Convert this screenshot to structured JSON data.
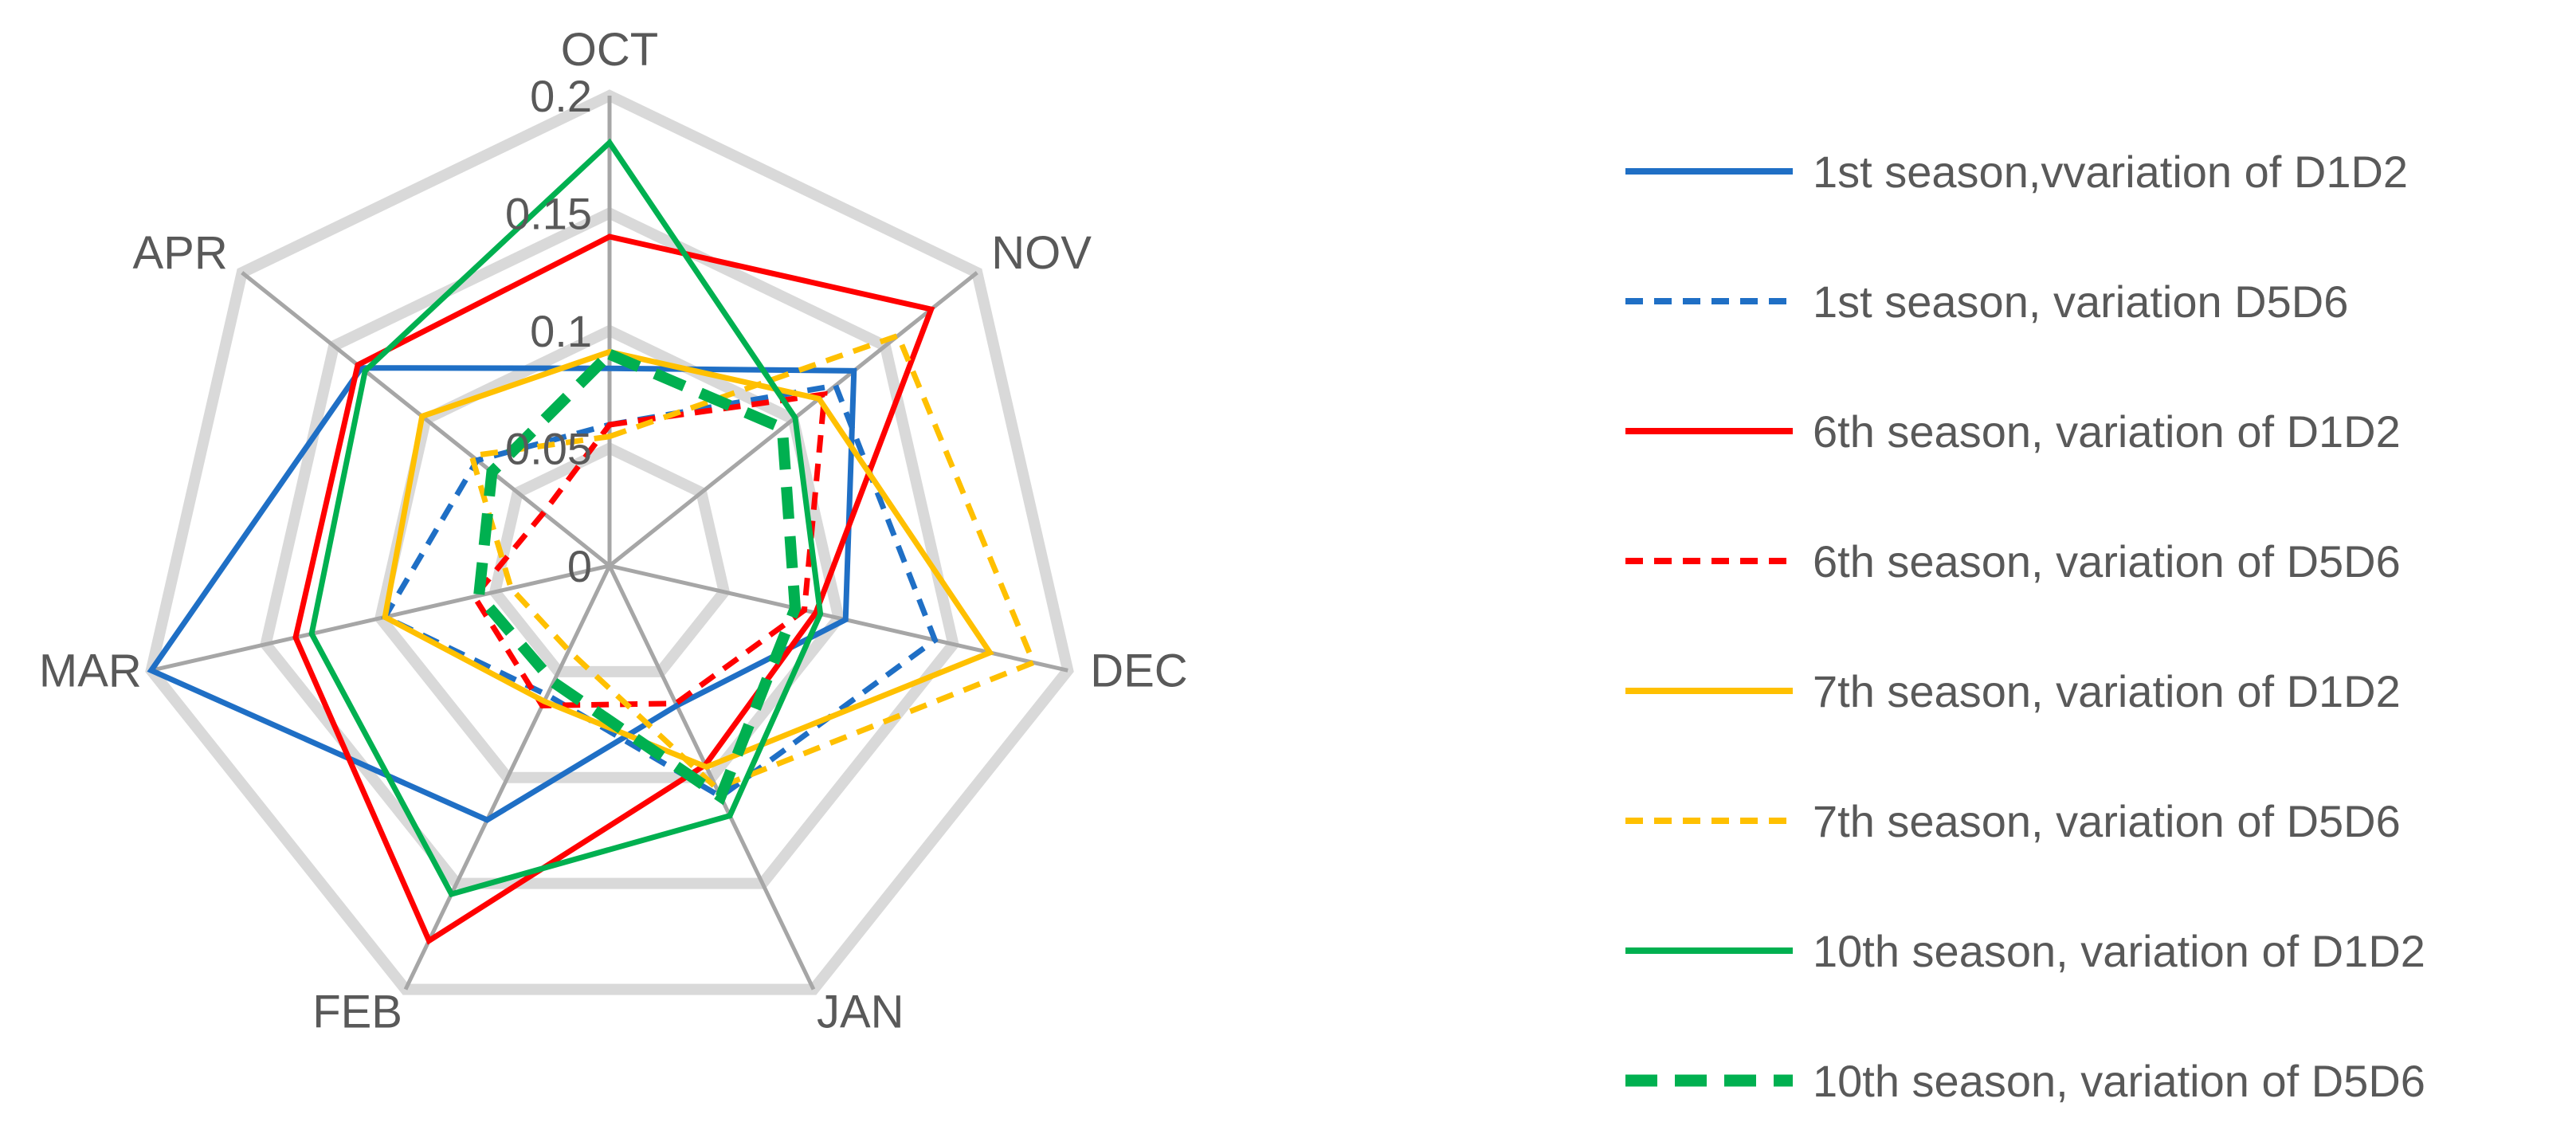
{
  "chart_data": {
    "type": "radar",
    "title": "",
    "axes": [
      "OCT",
      "NOV",
      "DEC",
      "JAN",
      "FEB",
      "MAR",
      "APR"
    ],
    "rlim": [
      0,
      0.2
    ],
    "ticks": [
      "0",
      "0.05",
      "0.1",
      "0.15",
      "0.2"
    ],
    "tick_values": [
      0,
      0.05,
      0.1,
      0.15,
      0.2
    ],
    "grid": true,
    "legend_position": "right",
    "series": [
      {
        "name": "1st season,vvariation of D1D2",
        "color": "#1f6fc5",
        "dash": "solid",
        "values": [
          0.084,
          0.133,
          0.103,
          0.066,
          0.12,
          0.2,
          0.135
        ]
      },
      {
        "name": "1st season, variation D5D6",
        "color": "#1f6fc5",
        "dash": "dashed",
        "values": [
          0.06,
          0.123,
          0.142,
          0.109,
          0.061,
          0.098,
          0.072
        ]
      },
      {
        "name": "6th season, variation of D1D2",
        "color": "#ff0000",
        "dash": "solid",
        "values": [
          0.14,
          0.175,
          0.09,
          0.094,
          0.177,
          0.137,
          0.137
        ]
      },
      {
        "name": "6th season, variation of D5D6",
        "color": "#ff0000",
        "dash": "dashed",
        "values": [
          0.06,
          0.117,
          0.085,
          0.065,
          0.066,
          0.059,
          0.036
        ]
      },
      {
        "name": "7th season, variation of D1D2",
        "color": "#ffc000",
        "dash": "solid",
        "values": [
          0.091,
          0.114,
          0.166,
          0.095,
          0.064,
          0.098,
          0.102
        ]
      },
      {
        "name": "7th season, variation of D5D6",
        "color": "#ffc000",
        "dash": "dashed",
        "values": [
          0.055,
          0.157,
          0.185,
          0.105,
          0.04,
          0.043,
          0.075
        ]
      },
      {
        "name": "10th season, variation of D1D2",
        "color": "#00b050",
        "dash": "solid",
        "values": [
          0.18,
          0.101,
          0.092,
          0.118,
          0.155,
          0.13,
          0.133
        ]
      },
      {
        "name": "10th season, variation of D5D6",
        "color": "#00b050",
        "dash": "thickdash",
        "values": [
          0.09,
          0.094,
          0.081,
          0.109,
          0.055,
          0.057,
          0.064
        ]
      }
    ]
  }
}
